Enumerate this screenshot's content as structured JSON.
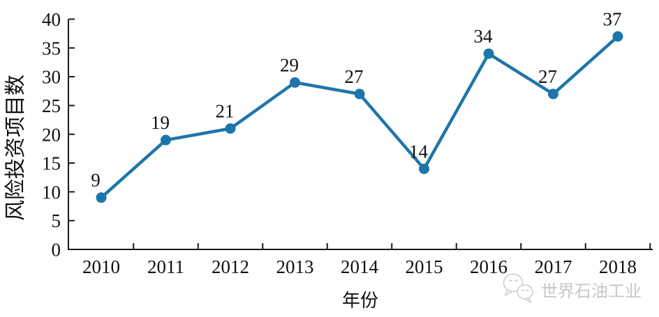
{
  "chart_data": {
    "type": "line",
    "title": "",
    "categories": [
      "2010",
      "2011",
      "2012",
      "2013",
      "2014",
      "2015",
      "2016",
      "2017",
      "2018"
    ],
    "values": [
      9,
      19,
      21,
      29,
      27,
      14,
      34,
      27,
      37
    ],
    "xlabel": "年份",
    "ylabel": "风险投资项目数",
    "ylim": [
      0,
      40
    ],
    "yticks": [
      0,
      5,
      10,
      15,
      20,
      25,
      30,
      35,
      40
    ],
    "grid": false,
    "legend": "none",
    "line_color": "#1d76a9",
    "marker_color": "#1d76a9",
    "marker": "circle",
    "axis_color": "#1a1a1a",
    "label_color": "#111111"
  },
  "watermark": {
    "text": "世界石油工业",
    "icon": "wechat-bubbles-icon",
    "color": "#c7c7c7"
  }
}
